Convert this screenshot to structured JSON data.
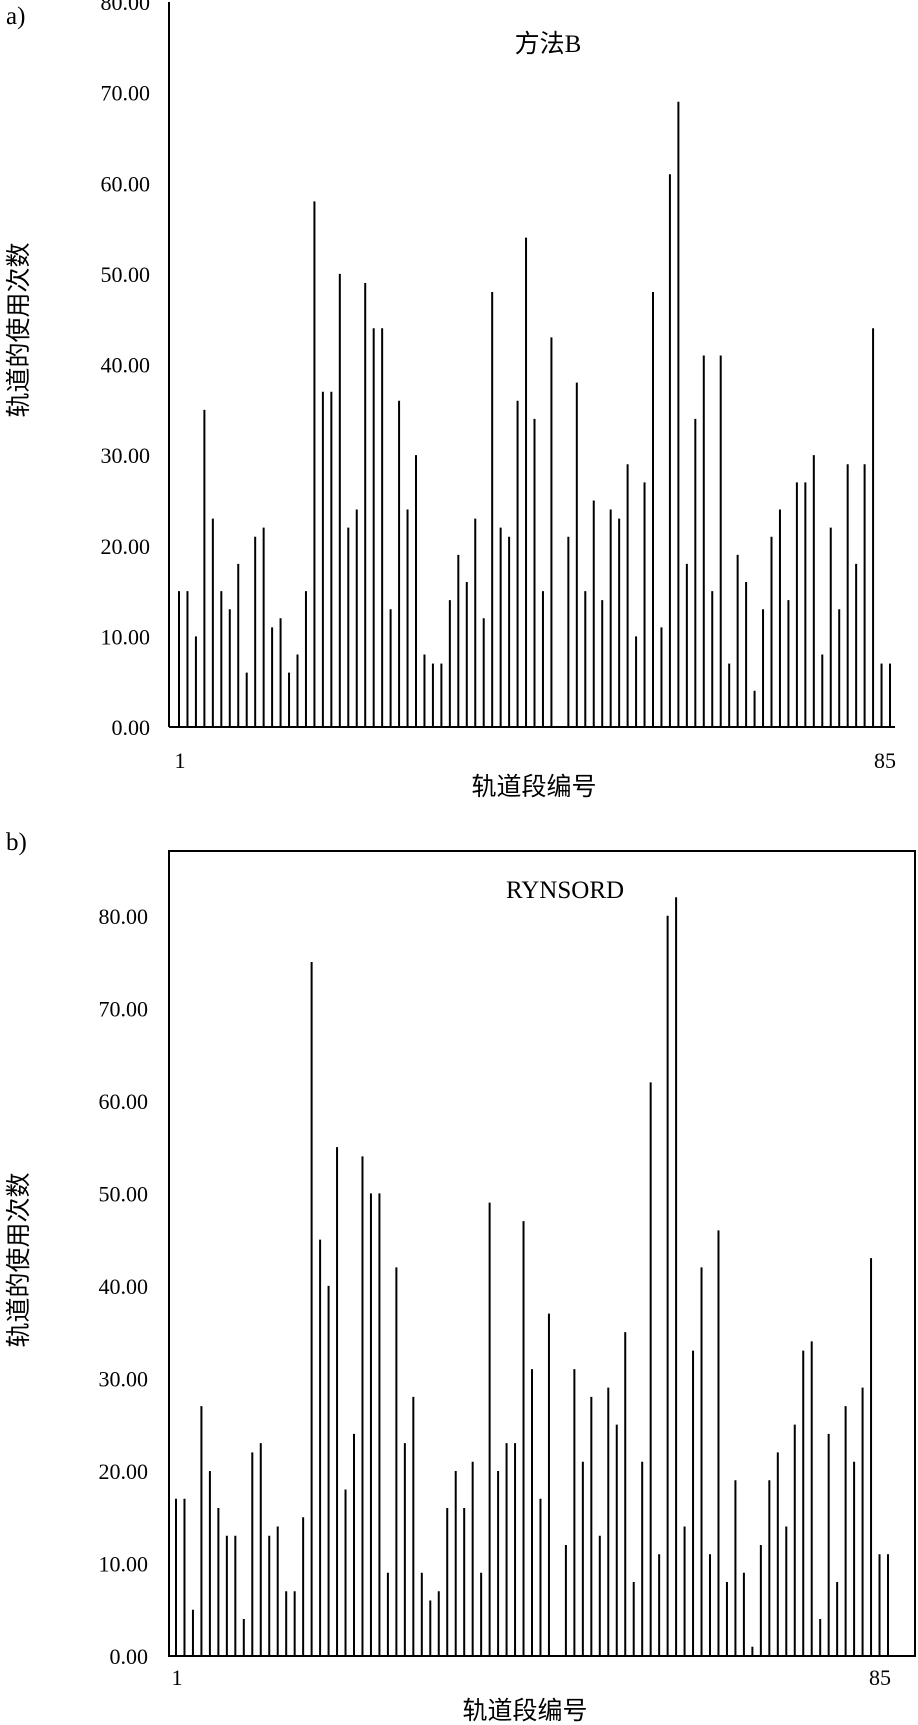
{
  "chart_data": [
    {
      "type": "bar",
      "panel_label": "a)",
      "title": "方法B",
      "xlabel": "轨道段编号",
      "ylabel": "轨道的使用次数",
      "ylim": [
        0,
        80
      ],
      "yticks": [
        "0.00",
        "10.00",
        "20.00",
        "30.00",
        "40.00",
        "50.00",
        "60.00",
        "70.00",
        "80.00"
      ],
      "xtick_labels": [
        "1",
        "85"
      ],
      "grid": false,
      "frame": "left-bottom",
      "categories": [
        1,
        2,
        3,
        4,
        5,
        6,
        7,
        8,
        9,
        10,
        11,
        12,
        13,
        14,
        15,
        16,
        17,
        18,
        19,
        20,
        21,
        22,
        23,
        24,
        25,
        26,
        27,
        28,
        29,
        30,
        31,
        32,
        33,
        34,
        35,
        36,
        37,
        38,
        39,
        40,
        41,
        42,
        43,
        44,
        45,
        46,
        47,
        48,
        49,
        50,
        51,
        52,
        53,
        54,
        55,
        56,
        57,
        58,
        59,
        60,
        61,
        62,
        63,
        64,
        65,
        66,
        67,
        68,
        69,
        70,
        71,
        72,
        73,
        74,
        75,
        76,
        77,
        78,
        79,
        80,
        81,
        82,
        83,
        84,
        85
      ],
      "values": [
        15,
        15,
        10,
        35,
        23,
        15,
        13,
        18,
        6,
        21,
        22,
        11,
        12,
        6,
        8,
        15,
        58,
        37,
        37,
        50,
        22,
        24,
        49,
        44,
        44,
        13,
        36,
        24,
        30,
        8,
        7,
        7,
        14,
        19,
        16,
        23,
        12,
        48,
        22,
        21,
        36,
        54,
        34,
        15,
        43,
        0,
        21,
        38,
        15,
        25,
        14,
        24,
        23,
        29,
        10,
        27,
        48,
        11,
        61,
        69,
        18,
        34,
        41,
        15,
        41,
        7,
        19,
        16,
        4,
        13,
        21,
        24,
        14,
        27,
        27,
        30,
        8,
        22,
        13,
        29,
        18,
        29,
        44,
        7,
        7
      ]
    },
    {
      "type": "bar",
      "panel_label": "b)",
      "title": "RYNSORD",
      "xlabel": "轨道段编号",
      "ylabel": "轨道的使用次数",
      "ylim": [
        0,
        87
      ],
      "yticks": [
        "0.00",
        "10.00",
        "20.00",
        "30.00",
        "40.00",
        "50.00",
        "60.00",
        "70.00",
        "80.00"
      ],
      "xtick_labels": [
        "1",
        "85"
      ],
      "grid": false,
      "frame": "box",
      "categories": [
        1,
        2,
        3,
        4,
        5,
        6,
        7,
        8,
        9,
        10,
        11,
        12,
        13,
        14,
        15,
        16,
        17,
        18,
        19,
        20,
        21,
        22,
        23,
        24,
        25,
        26,
        27,
        28,
        29,
        30,
        31,
        32,
        33,
        34,
        35,
        36,
        37,
        38,
        39,
        40,
        41,
        42,
        43,
        44,
        45,
        46,
        47,
        48,
        49,
        50,
        51,
        52,
        53,
        54,
        55,
        56,
        57,
        58,
        59,
        60,
        61,
        62,
        63,
        64,
        65,
        66,
        67,
        68,
        69,
        70,
        71,
        72,
        73,
        74,
        75,
        76,
        77,
        78,
        79,
        80,
        81,
        82,
        83,
        84,
        85
      ],
      "values": [
        17,
        17,
        5,
        27,
        20,
        16,
        13,
        13,
        4,
        22,
        23,
        13,
        14,
        7,
        7,
        15,
        75,
        45,
        40,
        55,
        18,
        24,
        54,
        50,
        50,
        9,
        42,
        23,
        28,
        9,
        6,
        7,
        16,
        20,
        16,
        21,
        9,
        49,
        20,
        23,
        23,
        47,
        31,
        17,
        37,
        0,
        12,
        31,
        21,
        28,
        13,
        29,
        25,
        35,
        8,
        21,
        62,
        11,
        80,
        82,
        14,
        33,
        42,
        11,
        46,
        8,
        19,
        9,
        1,
        12,
        19,
        22,
        14,
        25,
        33,
        34,
        4,
        24,
        8,
        27,
        21,
        29,
        43,
        11,
        11
      ]
    }
  ]
}
